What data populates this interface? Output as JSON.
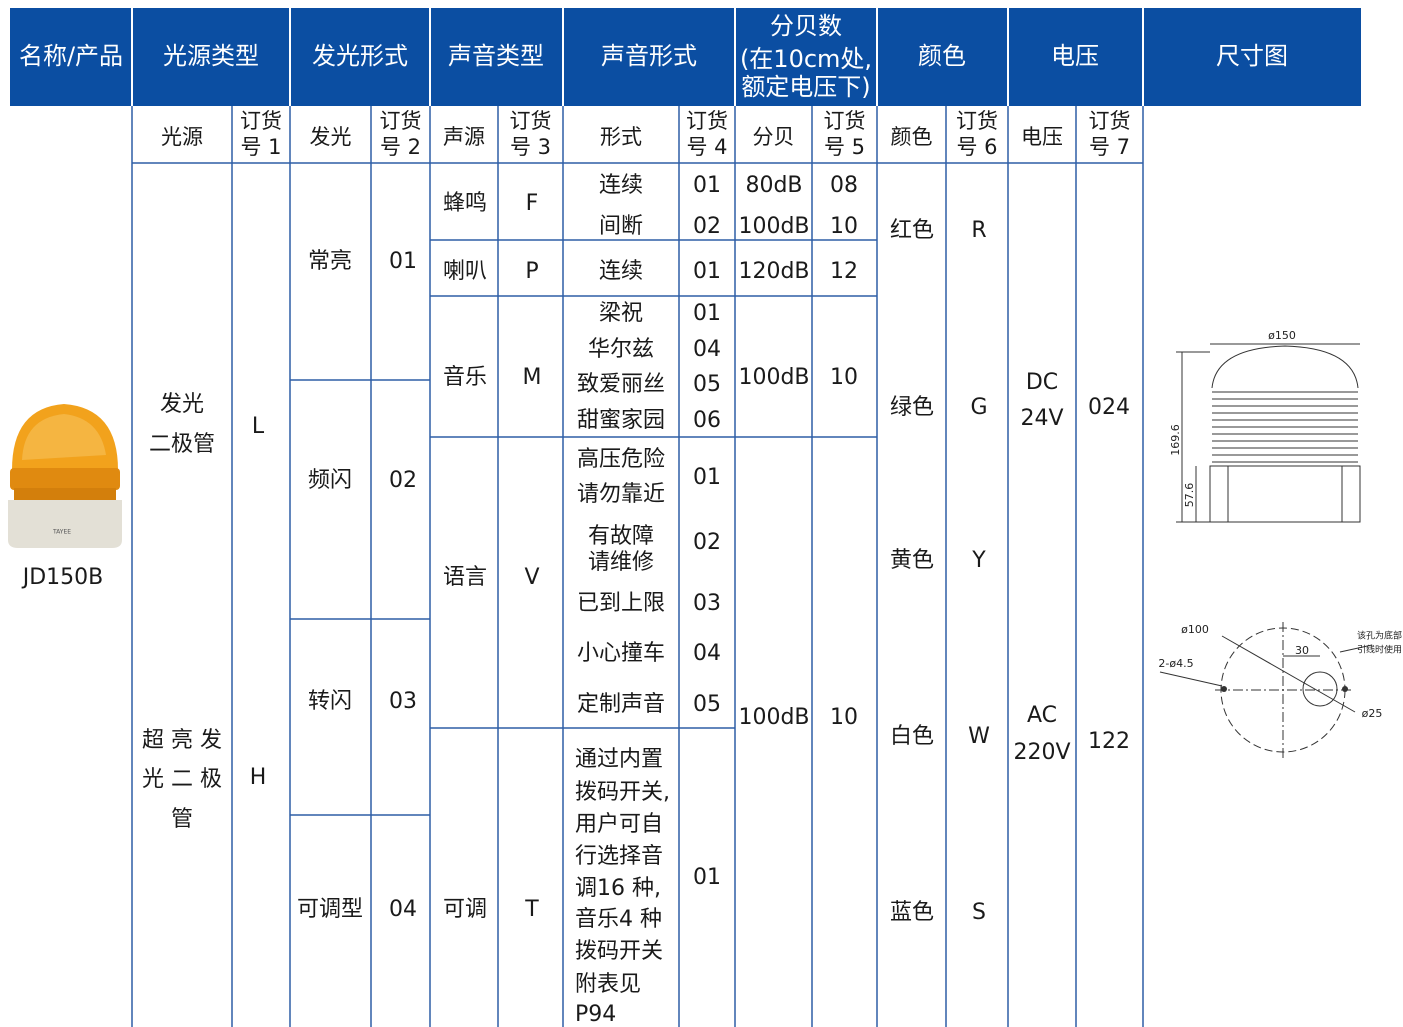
{
  "header": [
    [
      "名称/产品"
    ],
    [
      "光源类型"
    ],
    [
      "发光形式"
    ],
    [
      "声音类型"
    ],
    [
      "声音形式"
    ],
    [
      "分贝数",
      "(在10cm处,",
      "额定电压下)"
    ],
    [
      "颜色"
    ],
    [
      "电压"
    ],
    [
      "尺寸图"
    ]
  ],
  "subheader": [
    [
      "光源"
    ],
    [
      "订货",
      "号 1"
    ],
    [
      "发光"
    ],
    [
      "订货",
      "号 2"
    ],
    [
      "声源"
    ],
    [
      "订货",
      "号 3"
    ],
    [
      "形式"
    ],
    [
      "订货",
      "号 4"
    ],
    [
      "分贝"
    ],
    [
      "订货",
      "号 5"
    ],
    [
      "颜色"
    ],
    [
      "订货",
      "号 6"
    ],
    [
      "电压"
    ],
    [
      "订货",
      "号 7"
    ]
  ],
  "product": {
    "model": "JD150B",
    "brand": "TAYEE"
  },
  "light_sources": [
    {
      "name": [
        "发光",
        "二极管"
      ],
      "code": "L"
    },
    {
      "name": [
        "超 亮 发",
        "光 二 极",
        "管"
      ],
      "code": "H"
    }
  ],
  "light_modes": [
    {
      "name": "常亮",
      "code": "01"
    },
    {
      "name": "频闪",
      "code": "02"
    },
    {
      "name": "转闪",
      "code": "03"
    },
    {
      "name": "可调型",
      "code": "04"
    }
  ],
  "sound_types": [
    {
      "name": "蜂鸣",
      "code": "F"
    },
    {
      "name": "喇叭",
      "code": "P"
    },
    {
      "name": "音乐",
      "code": "M"
    },
    {
      "name": "语言",
      "code": "V"
    },
    {
      "name": "可调",
      "code": "T"
    }
  ],
  "sound_forms": [
    {
      "name": [
        "连续"
      ],
      "code": "01"
    },
    {
      "name": [
        "间断"
      ],
      "code": "02"
    },
    {
      "name": [
        "连续"
      ],
      "code": "01"
    },
    {
      "name": [
        "梁祝"
      ],
      "code": "01"
    },
    {
      "name": [
        "华尔兹"
      ],
      "code": "04"
    },
    {
      "name": [
        "致爱丽丝"
      ],
      "code": "05"
    },
    {
      "name": [
        "甜蜜家园"
      ],
      "code": "06"
    },
    {
      "name": [
        "高压危险",
        "请勿靠近"
      ],
      "code": "01"
    },
    {
      "name": [
        "有故障",
        "请维修"
      ],
      "code": "02"
    },
    {
      "name": [
        "已到上限"
      ],
      "code": "03"
    },
    {
      "name": [
        "小心撞车"
      ],
      "code": "04"
    },
    {
      "name": [
        "定制声音"
      ],
      "code": "05"
    },
    {
      "name": [
        "通过内置",
        "拨码开关,",
        "用户可自",
        "行选择音",
        "调16 种,",
        "音乐4 种",
        "拨码开关",
        "附表见",
        "P94"
      ],
      "code": "01"
    }
  ],
  "decibels": [
    {
      "value": "80dB",
      "code": "08"
    },
    {
      "value": "100dB",
      "code": "10"
    },
    {
      "value": "120dB",
      "code": "12"
    },
    {
      "value": "100dB",
      "code": "10"
    },
    {
      "value": "100dB",
      "code": "10"
    }
  ],
  "colors": [
    {
      "name": "红色",
      "code": "R"
    },
    {
      "name": "绿色",
      "code": "G"
    },
    {
      "name": "黄色",
      "code": "Y"
    },
    {
      "name": "白色",
      "code": "W"
    },
    {
      "name": "蓝色",
      "code": "S"
    }
  ],
  "voltages": [
    {
      "name": [
        "DC",
        "24V"
      ],
      "code": "024"
    },
    {
      "name": [
        "AC",
        "220V"
      ],
      "code": "122"
    }
  ],
  "dimensions": {
    "top_diameter": "ø150",
    "height": "169.6",
    "base_height": "57.6",
    "hole_circle": "ø100",
    "holes": "2-ø4.5",
    "offset": "30",
    "center_hole": "ø25",
    "note": [
      "该孔为底部",
      "引线时使用"
    ]
  }
}
